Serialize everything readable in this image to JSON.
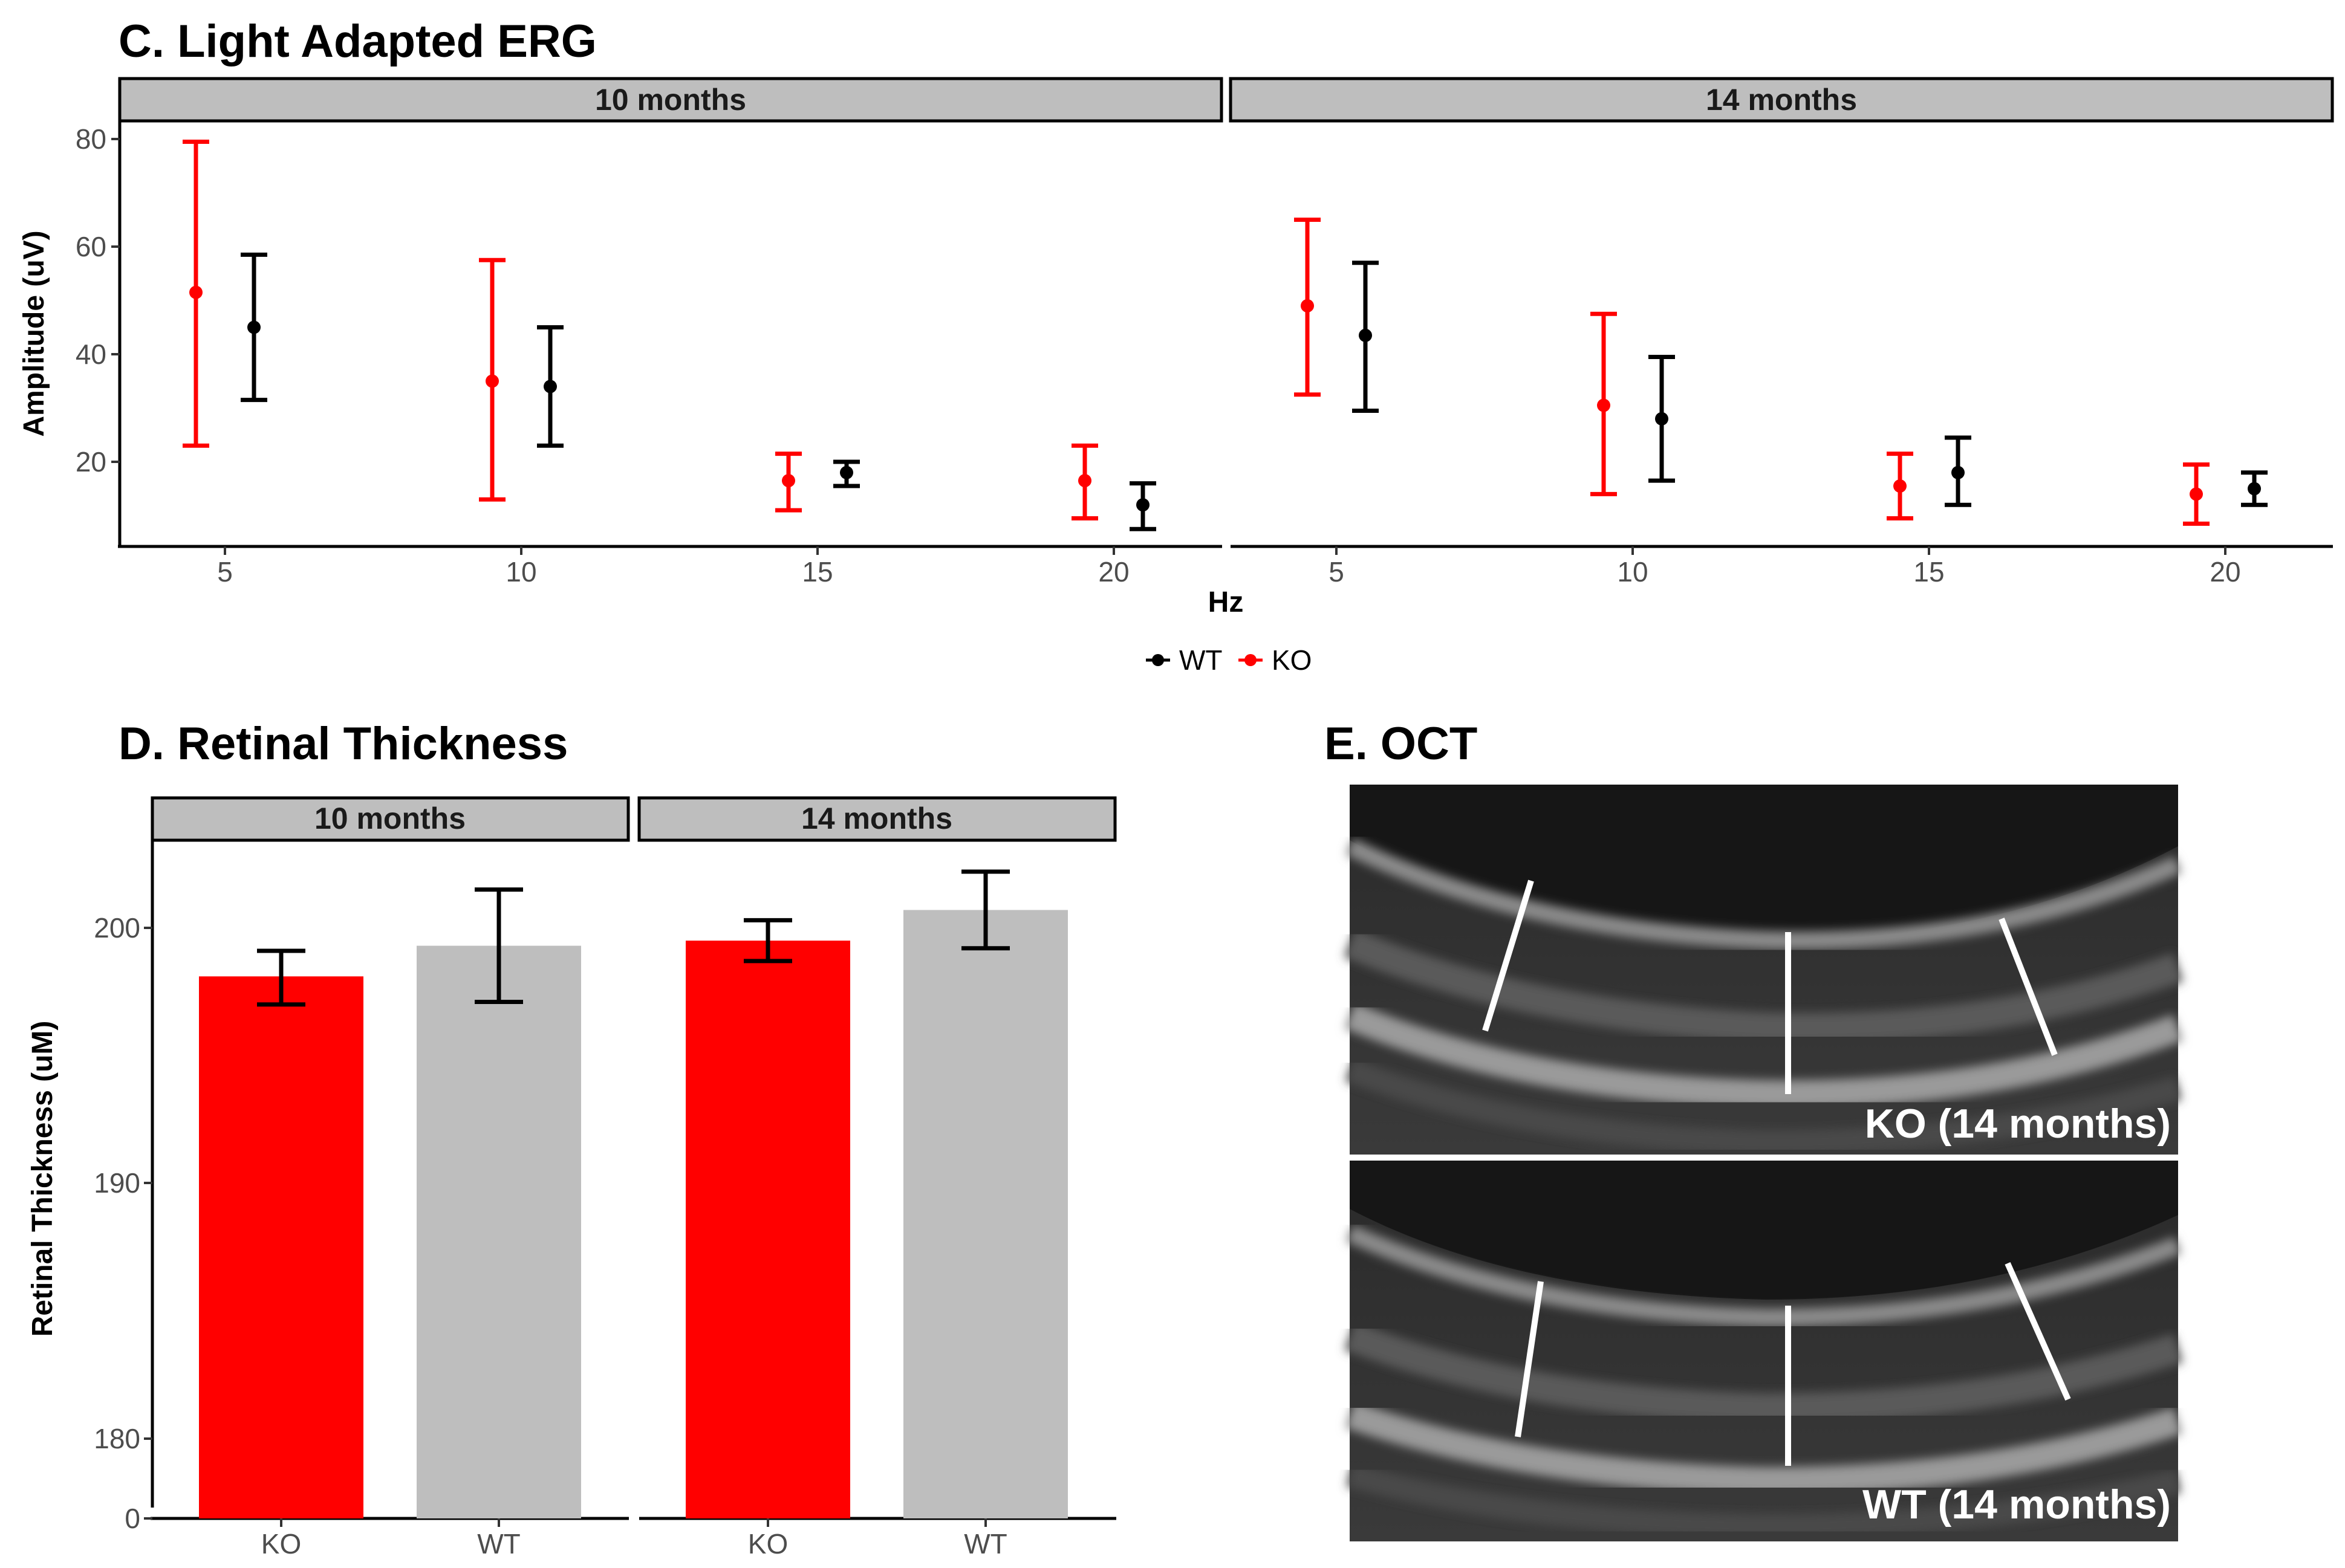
{
  "chart_data": [
    {
      "panel_title": "C. Light Adapted ERG",
      "type": "scatter",
      "facets": [
        "10 months",
        "14 months"
      ],
      "x_categories": [
        "5",
        "10",
        "15",
        "20"
      ],
      "xlabel": "Hz",
      "ylabel": "Amplitude (uV)",
      "yticks": [
        "20",
        "40",
        "60",
        "80"
      ],
      "ylim": [
        3,
        82
      ],
      "legend": [
        {
          "name": "WT",
          "color": "#000000"
        },
        {
          "name": "KO",
          "color": "#ff0000"
        }
      ],
      "series": [
        {
          "name": "KO",
          "color": "#ff0000",
          "facet": "10 months",
          "points": [
            {
              "x": "5",
              "y": 51.5,
              "lo": 23,
              "hi": 79.5
            },
            {
              "x": "10",
              "y": 35,
              "lo": 13,
              "hi": 57.5
            },
            {
              "x": "15",
              "y": 16.5,
              "lo": 11,
              "hi": 21.5
            },
            {
              "x": "20",
              "y": 16.5,
              "lo": 9.5,
              "hi": 23
            }
          ]
        },
        {
          "name": "WT",
          "color": "#000000",
          "facet": "10 months",
          "points": [
            {
              "x": "5",
              "y": 45,
              "lo": 31.5,
              "hi": 58.5
            },
            {
              "x": "10",
              "y": 34,
              "lo": 23,
              "hi": 45
            },
            {
              "x": "15",
              "y": 18,
              "lo": 15.5,
              "hi": 20
            },
            {
              "x": "20",
              "y": 12,
              "lo": 7.5,
              "hi": 16
            }
          ]
        },
        {
          "name": "KO",
          "color": "#ff0000",
          "facet": "14 months",
          "points": [
            {
              "x": "5",
              "y": 49,
              "lo": 32.5,
              "hi": 65
            },
            {
              "x": "10",
              "y": 30.5,
              "lo": 14,
              "hi": 47.5
            },
            {
              "x": "15",
              "y": 15.5,
              "lo": 9.5,
              "hi": 21.5
            },
            {
              "x": "20",
              "y": 14,
              "lo": 8.5,
              "hi": 19.5
            }
          ]
        },
        {
          "name": "WT",
          "color": "#000000",
          "facet": "14 months",
          "points": [
            {
              "x": "5",
              "y": 43.5,
              "lo": 29.5,
              "hi": 57
            },
            {
              "x": "10",
              "y": 28,
              "lo": 16.5,
              "hi": 39.5
            },
            {
              "x": "15",
              "y": 18,
              "lo": 12,
              "hi": 24.5
            },
            {
              "x": "20",
              "y": 15,
              "lo": 12,
              "hi": 18
            }
          ]
        }
      ]
    },
    {
      "panel_title": "D. Retinal Thickness",
      "type": "bar",
      "facets": [
        "10 months",
        "14 months"
      ],
      "categories": [
        "KO",
        "WT"
      ],
      "ylabel": "Retinal Thickness (uM)",
      "yticks": [
        "0",
        "180",
        "190",
        "200"
      ],
      "y_axis_break": "0 to ~177",
      "ylim": [
        177,
        204
      ],
      "series": [
        {
          "facet": "10 months",
          "bars": [
            {
              "x": "KO",
              "value": 198.1,
              "lo": 197.0,
              "hi": 199.1,
              "color": "#ff0000"
            },
            {
              "x": "WT",
              "value": 199.3,
              "lo": 197.1,
              "hi": 201.5,
              "color": "#bebebe"
            }
          ]
        },
        {
          "facet": "14 months",
          "bars": [
            {
              "x": "KO",
              "value": 199.5,
              "lo": 198.7,
              "hi": 200.3,
              "color": "#ff0000"
            },
            {
              "x": "WT",
              "value": 200.7,
              "lo": 199.2,
              "hi": 202.2,
              "color": "#bebebe"
            }
          ]
        }
      ]
    }
  ],
  "oct": {
    "title": "E. OCT",
    "images": [
      {
        "label": "KO (14 months)"
      },
      {
        "label": "WT (14 months)"
      }
    ]
  }
}
